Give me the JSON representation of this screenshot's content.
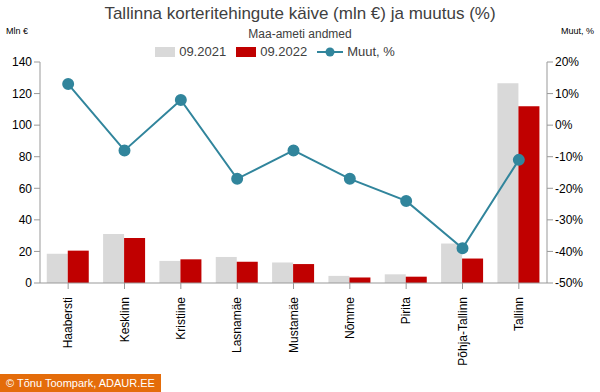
{
  "chart_data": {
    "type": "bar",
    "title": "Tallinna korteritehingute käive (mln €) ja muutus (%)",
    "subtitle": "Maa-ameti andmed",
    "source": "© Tõnu Toompark, ADAUR.EE",
    "y_label": "Mln €",
    "y2_label": "Muut, %",
    "categories": [
      "Haabersti",
      "Kesklinn",
      "Kristiine",
      "Lasnamäe",
      "Mustamäe",
      "Nõmme",
      "Pirita",
      "Põhja-Tallinn",
      "Tallinn"
    ],
    "series": [
      {
        "name": "09.2021",
        "color": "#d9d9d9",
        "values": [
          18.5,
          31,
          14,
          16.5,
          13,
          4.5,
          5.5,
          25,
          126.5
        ]
      },
      {
        "name": "09.2022",
        "color": "#c00000",
        "values": [
          20.5,
          28.5,
          15,
          13.5,
          12,
          3.5,
          4,
          15.5,
          112
        ]
      },
      {
        "name": "Muut, %",
        "type": "line",
        "color": "#31859c",
        "marker": "circle",
        "axis": "y2",
        "values": [
          13,
          -8,
          8,
          -17,
          -8,
          -17,
          -24,
          -39,
          -11
        ]
      }
    ],
    "ylim": [
      0,
      140
    ],
    "yticks": [
      0,
      20,
      40,
      60,
      80,
      100,
      120,
      140
    ],
    "y2lim": [
      -50,
      20
    ],
    "y2ticks": [
      {
        "value": -50,
        "label": "-50%"
      },
      {
        "value": -40,
        "label": "-40%"
      },
      {
        "value": -30,
        "label": "-30%"
      },
      {
        "value": -20,
        "label": "-20%"
      },
      {
        "value": -10,
        "label": "-10%"
      },
      {
        "value": 0,
        "label": "0%"
      },
      {
        "value": 10,
        "label": "10%"
      },
      {
        "value": 20,
        "label": "20%"
      }
    ],
    "legend": "top",
    "grid": false
  }
}
